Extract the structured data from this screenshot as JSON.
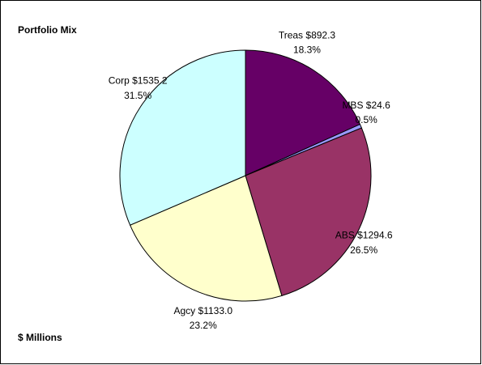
{
  "chart_data": {
    "type": "pie",
    "title": "Portfolio Mix",
    "annotation": "$ Millions",
    "categories": [
      "Treas",
      "MBS",
      "ABS",
      "Agcy",
      "Corp"
    ],
    "values": [
      892.3,
      24.6,
      1294.6,
      1133.0,
      1535.2
    ],
    "value_labels": [
      "$892.3",
      "$24.6",
      "$1294.6",
      "$1133.0",
      "$1535.2"
    ],
    "percents": [
      18.3,
      0.5,
      26.5,
      23.2,
      31.5
    ],
    "percent_labels": [
      "18.3%",
      "0.5%",
      "26.5%",
      "23.2%",
      "31.5%"
    ],
    "colors": [
      "#660066",
      "#9999ff",
      "#993366",
      "#ffffcc",
      "#ccffff"
    ]
  }
}
